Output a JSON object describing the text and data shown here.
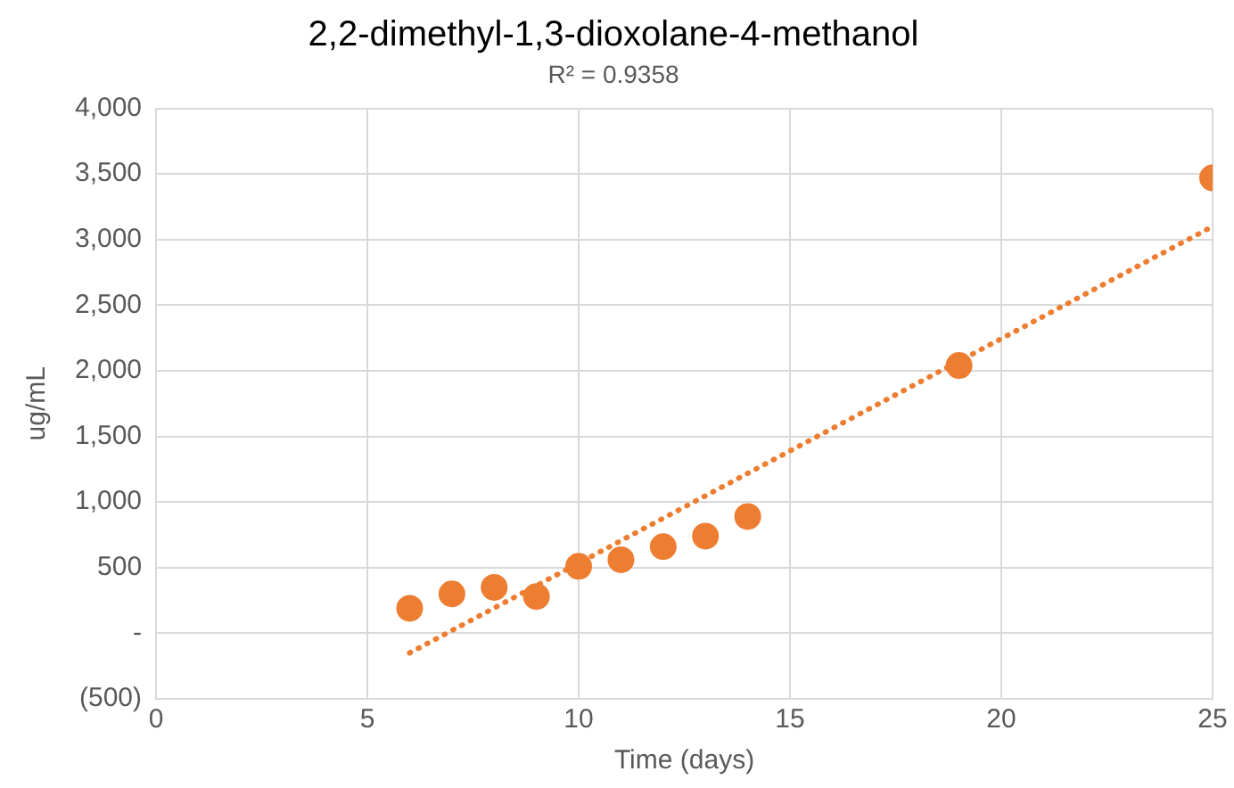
{
  "chart_data": {
    "type": "scatter",
    "title": "2,2-dimethyl-1,3-dioxolane-4-methanol",
    "subtitle": "R² = 0.9358",
    "xlabel": "Time (days)",
    "ylabel": "ug/mL",
    "x": [
      6,
      7,
      8,
      9,
      10,
      11,
      12,
      13,
      14,
      19,
      25
    ],
    "series": [
      {
        "color": "#ed7d31",
        "values": [
          190,
          300,
          350,
          280,
          510,
          560,
          660,
          740,
          890,
          2040,
          3470
        ]
      },
      {
        "type": "line",
        "color": "#ed7d31",
        "x": [
          6,
          25
        ],
        "values": [
          -150,
          3100
        ],
        "line_style": "dotted",
        "marker": "none"
      }
    ],
    "xlim": [
      0,
      25
    ],
    "xticks": [
      0,
      5,
      10,
      15,
      20,
      25
    ],
    "ylim": [
      -500,
      4000
    ],
    "yticks": [
      {
        "value": -500,
        "label": "(500)"
      },
      {
        "value": 0,
        "label": "-"
      },
      {
        "value": 500,
        "label": "500"
      },
      {
        "value": 1000,
        "label": "1,000"
      },
      {
        "value": 1500,
        "label": "1,500"
      },
      {
        "value": 2000,
        "label": "2,000"
      },
      {
        "value": 2500,
        "label": "2,500"
      },
      {
        "value": 3000,
        "label": "3,000"
      },
      {
        "value": 3500,
        "label": "3,500"
      },
      {
        "value": 4000,
        "label": "4,000"
      }
    ],
    "grid": true,
    "legend": false,
    "marker": "circle"
  }
}
